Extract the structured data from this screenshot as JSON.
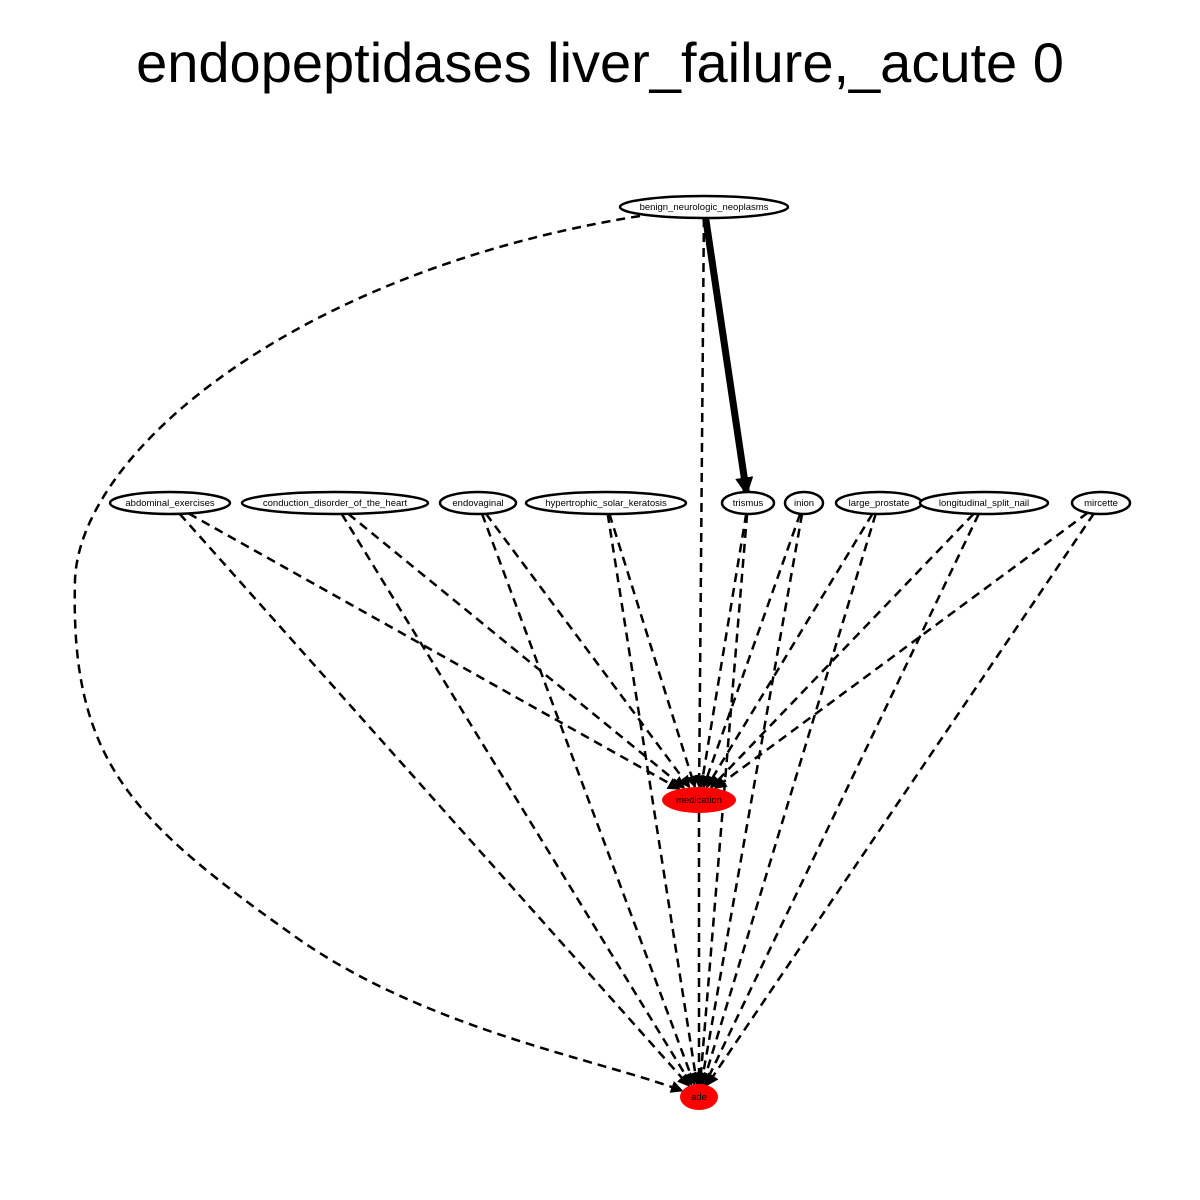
{
  "title": "endopeptidases liver_failure,_acute 0",
  "colors": {
    "highlight": "#ff0000",
    "stroke": "#000000",
    "background": "#ffffff"
  },
  "nodes": [
    {
      "id": "benign_neurologic_neoplasms",
      "label": "benign_neurologic_neoplasms",
      "highlighted": false
    },
    {
      "id": "abdominal_exercises",
      "label": "abdominal_exercises",
      "highlighted": false
    },
    {
      "id": "conduction_disorder_of_the_heart",
      "label": "conduction_disorder_of_the_heart",
      "highlighted": false
    },
    {
      "id": "endovaginal",
      "label": "endovaginal",
      "highlighted": false
    },
    {
      "id": "hypertrophic_solar_keratosis",
      "label": "hypertrophic_solar_keratosis",
      "highlighted": false
    },
    {
      "id": "trismus",
      "label": "trismus",
      "highlighted": false
    },
    {
      "id": "inion",
      "label": "inion",
      "highlighted": false
    },
    {
      "id": "large_prostate",
      "label": "large_prostate",
      "highlighted": false
    },
    {
      "id": "longitudinal_split_nail",
      "label": "longitudinal_split_nail",
      "highlighted": false
    },
    {
      "id": "mircette",
      "label": "mircette",
      "highlighted": false
    },
    {
      "id": "medication",
      "label": "medication",
      "highlighted": true
    },
    {
      "id": "ade",
      "label": "ade",
      "highlighted": true
    }
  ],
  "edges": [
    {
      "from": "benign_neurologic_neoplasms",
      "to": "trismus",
      "style": "solid"
    },
    {
      "from": "benign_neurologic_neoplasms",
      "to": "medication",
      "style": "dashed"
    },
    {
      "from": "benign_neurologic_neoplasms",
      "to": "ade",
      "style": "dashed"
    },
    {
      "from": "abdominal_exercises",
      "to": "medication",
      "style": "dashed"
    },
    {
      "from": "abdominal_exercises",
      "to": "ade",
      "style": "dashed"
    },
    {
      "from": "conduction_disorder_of_the_heart",
      "to": "medication",
      "style": "dashed"
    },
    {
      "from": "conduction_disorder_of_the_heart",
      "to": "ade",
      "style": "dashed"
    },
    {
      "from": "endovaginal",
      "to": "medication",
      "style": "dashed"
    },
    {
      "from": "endovaginal",
      "to": "ade",
      "style": "dashed"
    },
    {
      "from": "hypertrophic_solar_keratosis",
      "to": "medication",
      "style": "dashed"
    },
    {
      "from": "hypertrophic_solar_keratosis",
      "to": "ade",
      "style": "dashed"
    },
    {
      "from": "trismus",
      "to": "medication",
      "style": "dashed"
    },
    {
      "from": "trismus",
      "to": "ade",
      "style": "dashed"
    },
    {
      "from": "inion",
      "to": "medication",
      "style": "dashed"
    },
    {
      "from": "inion",
      "to": "ade",
      "style": "dashed"
    },
    {
      "from": "large_prostate",
      "to": "medication",
      "style": "dashed"
    },
    {
      "from": "large_prostate",
      "to": "ade",
      "style": "dashed"
    },
    {
      "from": "longitudinal_split_nail",
      "to": "medication",
      "style": "dashed"
    },
    {
      "from": "longitudinal_split_nail",
      "to": "ade",
      "style": "dashed"
    },
    {
      "from": "mircette",
      "to": "medication",
      "style": "dashed"
    },
    {
      "from": "mircette",
      "to": "ade",
      "style": "dashed"
    },
    {
      "from": "medication",
      "to": "ade",
      "style": "dashed"
    }
  ]
}
